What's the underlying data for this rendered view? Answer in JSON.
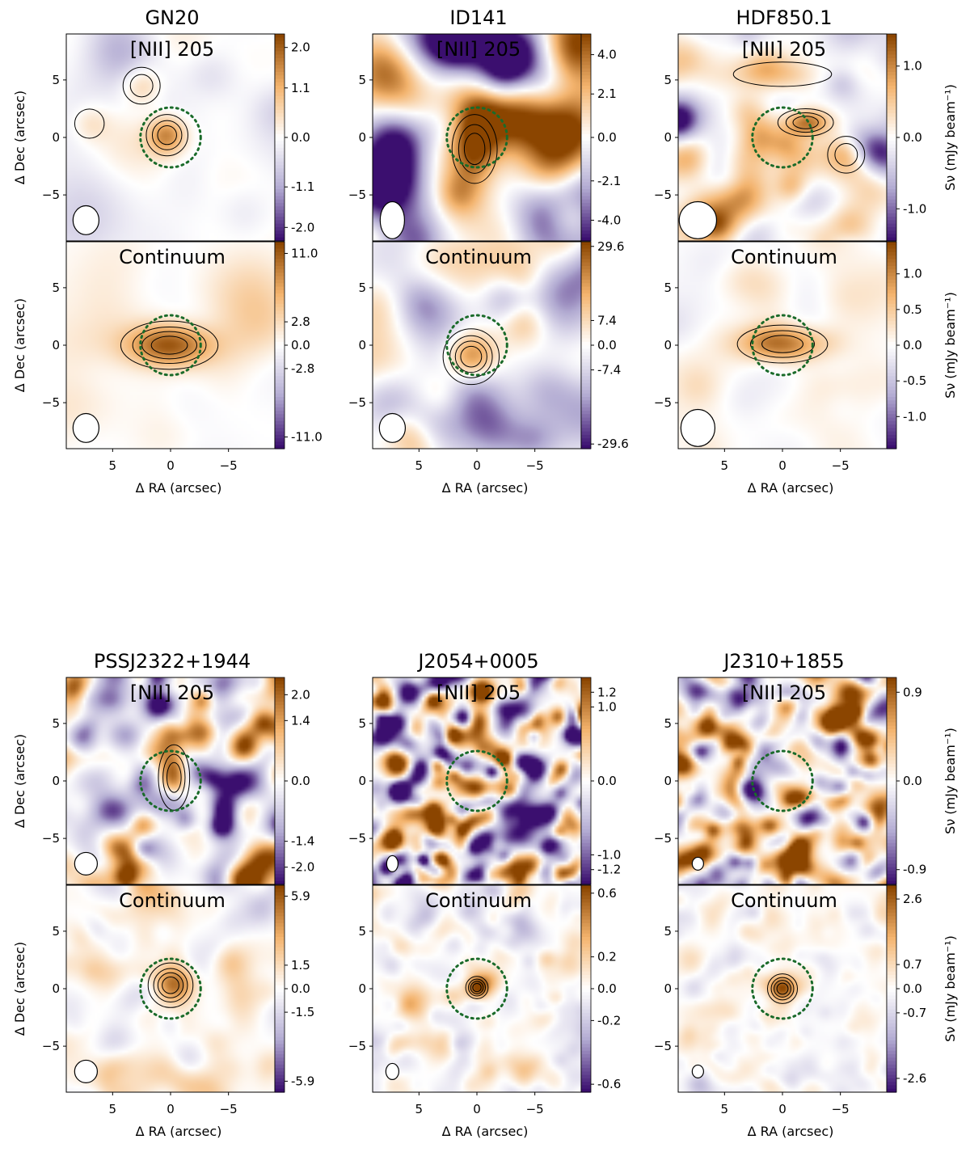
{
  "chart_data": [
    {
      "type": "heatmap",
      "title": "GN20",
      "xlabel": "Δ RA (arcsec)",
      "ylabel": "Δ Dec (arcsec)",
      "xlim": [
        9,
        -9
      ],
      "ylim": [
        -9,
        9
      ],
      "x_ticks": [
        "5",
        "0",
        "−5"
      ],
      "y_ticks": [
        "5",
        "0",
        "−5"
      ],
      "panels": [
        {
          "label": "[NII] 205",
          "vmax": 2.3,
          "colorbar_ticks": [
            "2.0",
            "1.1",
            "0.0",
            "-1.1",
            "-2.0"
          ],
          "beam": {
            "major_arcsec": 1.8,
            "minor_arcsec": 1.6
          },
          "sources": [
            {
              "x": 0.3,
              "y": 0.2,
              "amp": 1.9
            },
            {
              "x": 2.5,
              "y": 4.5,
              "amp": 0.9
            },
            {
              "x": 7,
              "y": 1.2,
              "amp": 0.6
            }
          ],
          "noise_level": 0.25,
          "noise_scale": 2.6,
          "seed": 3
        },
        {
          "label": "Continuum",
          "vmax": 12.4,
          "colorbar_ticks": [
            "11.0",
            "2.8",
            "0.0",
            "-2.8",
            "-11.0"
          ],
          "beam": {
            "major_arcsec": 1.8,
            "minor_arcsec": 1.6
          },
          "sources": [
            {
              "x": 0.1,
              "y": 0,
              "amp": 11.5,
              "sx": 2.6,
              "sy": 1.3
            }
          ],
          "noise_level": 0.15,
          "noise_scale": 2.6,
          "seed": 5
        }
      ]
    },
    {
      "type": "heatmap",
      "title": "ID141",
      "xlabel": "Δ RA (arcsec)",
      "ylabel": "",
      "xlim": [
        9,
        -9
      ],
      "ylim": [
        -9,
        9
      ],
      "x_ticks": [
        "5",
        "0",
        "−5"
      ],
      "y_ticks": [
        "5",
        "0",
        "−5"
      ],
      "panels": [
        {
          "label": "[NII] 205",
          "vmax": 5.0,
          "colorbar_ticks": [
            "4.0",
            "2.1",
            "0.0",
            "-2.1",
            "-4.0"
          ],
          "beam": {
            "major_arcsec": 2.3,
            "minor_arcsec": 1.5
          },
          "sources": [
            {
              "x": 0.2,
              "y": -1,
              "amp": 3.6,
              "sx": 1.3,
              "sy": 2.0
            }
          ],
          "noise_level": 0.9,
          "noise_scale": 2.2,
          "seed": 11
        },
        {
          "label": "Continuum",
          "vmax": 31,
          "colorbar_ticks": [
            "29.6",
            "7.4",
            "0.0",
            "-7.4",
            "-29.6"
          ],
          "beam": {
            "major_arcsec": 1.8,
            "minor_arcsec": 1.6
          },
          "sources": [
            {
              "x": 0.5,
              "y": -1,
              "amp": 28,
              "sx": 1.5,
              "sy": 1.5
            }
          ],
          "noise_level": 0.5,
          "noise_scale": 2.2,
          "seed": 13
        }
      ]
    },
    {
      "type": "heatmap",
      "title": "HDF850.1",
      "xlabel": "Δ RA (arcsec)",
      "ylabel": "",
      "colorbar_label": "Sν (mJy beam⁻¹)",
      "xlim": [
        9,
        -9
      ],
      "ylim": [
        -9,
        9
      ],
      "x_ticks": [
        "5",
        "0",
        "−5"
      ],
      "y_ticks": [
        "5",
        "0",
        "−5"
      ],
      "panels": [
        {
          "label": "[NII] 205",
          "vmax": 1.45,
          "colorbar_ticks": [
            "1.0",
            "0.0",
            "-1.0"
          ],
          "beam": {
            "major_arcsec": 2.3,
            "minor_arcsec": 2.3
          },
          "sources": [
            {
              "x": -2,
              "y": 1.3,
              "amp": 1.2,
              "sx": 1.6,
              "sy": 0.8
            },
            {
              "x": -5.5,
              "y": -1.5,
              "amp": 0.6
            },
            {
              "x": 0,
              "y": 5.5,
              "amp": 0.5,
              "sx": 4,
              "sy": 1
            }
          ],
          "noise_level": 0.45,
          "noise_scale": 1.6,
          "seed": 17
        },
        {
          "label": "Continuum",
          "vmax": 1.45,
          "colorbar_ticks": [
            "1.0",
            "0.5",
            "0.0",
            "-0.5",
            "-1.0"
          ],
          "beam": {
            "major_arcsec": 2.3,
            "minor_arcsec": 2.1
          },
          "sources": [
            {
              "x": 0,
              "y": 0.1,
              "amp": 1.15,
              "sx": 2.6,
              "sy": 1.1
            }
          ],
          "noise_level": 0.12,
          "noise_scale": 2.0,
          "seed": 19
        }
      ]
    },
    {
      "type": "heatmap",
      "title": "PSSJ2322+1944",
      "xlabel": "Δ RA (arcsec)",
      "ylabel": "Δ Dec (arcsec)",
      "xlim": [
        9,
        -9
      ],
      "ylim": [
        -9,
        9
      ],
      "x_ticks": [
        "5",
        "0",
        "−5"
      ],
      "y_ticks": [
        "5",
        "0",
        "−5"
      ],
      "panels": [
        {
          "label": "[NII] 205",
          "vmax": 2.4,
          "colorbar_ticks": [
            "2.0",
            "1.4",
            "0.0",
            "-1.4",
            "-2.0"
          ],
          "beam": {
            "major_arcsec": 1.4,
            "minor_arcsec": 1.4
          },
          "sources": [
            {
              "x": -0.3,
              "y": 0.3,
              "amp": 2.0,
              "sx": 0.9,
              "sy": 1.9
            }
          ],
          "noise_level": 0.7,
          "noise_scale": 1.1,
          "seed": 23
        },
        {
          "label": "Continuum",
          "vmax": 6.6,
          "colorbar_ticks": [
            "5.9",
            "1.5",
            "0.0",
            "-1.5",
            "-5.9"
          ],
          "beam": {
            "major_arcsec": 1.4,
            "minor_arcsec": 1.4
          },
          "sources": [
            {
              "x": 0,
              "y": 0.3,
              "amp": 5.8,
              "sx": 1.2,
              "sy": 1.2
            }
          ],
          "noise_level": 0.2,
          "noise_scale": 1.2,
          "seed": 29
        }
      ]
    },
    {
      "type": "heatmap",
      "title": "J2054+0005",
      "xlabel": "Δ RA (arcsec)",
      "ylabel": "",
      "xlim": [
        9,
        -9
      ],
      "ylim": [
        -9,
        9
      ],
      "x_ticks": [
        "5",
        "0",
        "−5"
      ],
      "y_ticks": [
        "5",
        "0",
        "−5"
      ],
      "panels": [
        {
          "label": "[NII] 205",
          "vmax": 1.4,
          "colorbar_ticks": [
            "1.2",
            "1.0",
            "0.0",
            "-1.0",
            "-1.2"
          ],
          "beam": {
            "major_arcsec": 1.0,
            "minor_arcsec": 0.7
          },
          "sources": [],
          "noise_level": 1.1,
          "noise_scale": 0.75,
          "seed": 31
        },
        {
          "label": "Continuum",
          "vmax": 0.65,
          "colorbar_ticks": [
            "0.6",
            "0.2",
            "0.0",
            "-0.2",
            "-0.6"
          ],
          "beam": {
            "major_arcsec": 1.0,
            "minor_arcsec": 0.8
          },
          "sources": [
            {
              "x": 0,
              "y": 0.1,
              "amp": 0.62,
              "sx": 0.6,
              "sy": 0.6
            }
          ],
          "noise_level": 0.2,
          "noise_scale": 0.8,
          "seed": 37
        }
      ]
    },
    {
      "type": "heatmap",
      "title": "J2310+1855",
      "xlabel": "Δ RA (arcsec)",
      "ylabel": "",
      "colorbar_label": "Sν (mJy beam⁻¹)",
      "xlim": [
        9,
        -9
      ],
      "ylim": [
        -9,
        9
      ],
      "x_ticks": [
        "5",
        "0",
        "−5"
      ],
      "y_ticks": [
        "5",
        "0",
        "−5"
      ],
      "panels": [
        {
          "label": "[NII] 205",
          "vmax": 1.05,
          "colorbar_ticks": [
            "0.9",
            "0.0",
            "-0.9"
          ],
          "beam": {
            "major_arcsec": 0.8,
            "minor_arcsec": 0.7
          },
          "sources": [],
          "noise_level": 0.8,
          "noise_scale": 0.8,
          "seed": 41
        },
        {
          "label": "Continuum",
          "vmax": 3.0,
          "colorbar_ticks": [
            "2.6",
            "0.7",
            "0.0",
            "-0.7",
            "-2.6"
          ],
          "beam": {
            "major_arcsec": 0.8,
            "minor_arcsec": 0.7
          },
          "sources": [
            {
              "x": 0,
              "y": 0,
              "amp": 2.8,
              "sx": 0.8,
              "sy": 0.8
            }
          ],
          "noise_level": 0.15,
          "noise_scale": 0.8,
          "seed": 43
        }
      ]
    }
  ],
  "overlay": {
    "aperture": {
      "center_arcsec": [
        0,
        0
      ],
      "radius_arcsec": 2.6,
      "color": "#1a6b2a",
      "style": "dotted"
    },
    "contours": {
      "positive_color": "#000000",
      "negative_color": "#888888",
      "negative_style": "dashed"
    }
  },
  "colormap": {
    "negative": "#3b0f6f",
    "mid": "#ffffff",
    "positive": "#8b4500",
    "name": "PuOr_r"
  }
}
